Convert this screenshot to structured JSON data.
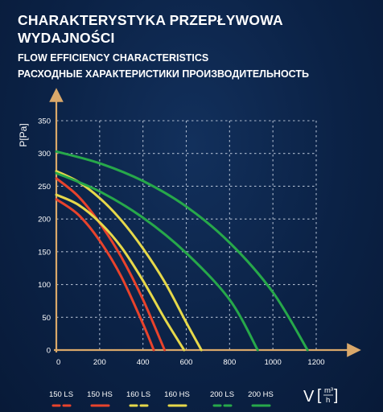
{
  "header": {
    "title_pl": "CHARAKTERYSTYKA PRZEPŁYWOWA WYDAJNOŚCI",
    "title_en": "FLOW EFFICIENCY CHARACTERISTICS",
    "title_ru": "РАСХОДНЫЕ ХАРАКТЕРИСТИКИ ПРОИЗВОДИТЕЛЬНОСТЬ"
  },
  "chart_data": {
    "type": "line",
    "title": "",
    "xlabel": "V",
    "xlabel_unit_num": "m³",
    "xlabel_unit_den": "h",
    "ylabel": "P[Pa]",
    "xlim": [
      0,
      1200
    ],
    "ylim": [
      0,
      350
    ],
    "xticks": [
      0,
      200,
      400,
      600,
      800,
      1000,
      1200
    ],
    "yticks": [
      0,
      50,
      100,
      150,
      200,
      250,
      300,
      350
    ],
    "grid": true,
    "legend_position": "bottom",
    "series": [
      {
        "name": "150 LS",
        "color": "#e8432c",
        "x": [
          0,
          100,
          200,
          300,
          400,
          450
        ],
        "y": [
          230,
          207,
          167,
          112,
          40,
          0
        ]
      },
      {
        "name": "150 HS",
        "color": "#e8432c",
        "x": [
          0,
          100,
          200,
          300,
          400,
          500
        ],
        "y": [
          262,
          235,
          194,
          142,
          77,
          0
        ]
      },
      {
        "name": "160 LS",
        "color": "#e6d84a",
        "x": [
          0,
          100,
          200,
          300,
          400,
          500,
          590
        ],
        "y": [
          237,
          222,
          195,
          157,
          106,
          48,
          0
        ]
      },
      {
        "name": "160 HS",
        "color": "#e6d84a",
        "x": [
          0,
          100,
          200,
          300,
          400,
          500,
          600,
          670
        ],
        "y": [
          273,
          257,
          232,
          198,
          155,
          104,
          42,
          0
        ]
      },
      {
        "name": "200 LS",
        "color": "#27a84a",
        "x": [
          0,
          200,
          400,
          600,
          800,
          930
        ],
        "y": [
          270,
          242,
          202,
          148,
          77,
          0
        ]
      },
      {
        "name": "200 HS",
        "color": "#27a84a",
        "x": [
          0,
          200,
          400,
          600,
          800,
          1000,
          1160
        ],
        "y": [
          303,
          285,
          258,
          219,
          164,
          88,
          0
        ]
      }
    ]
  }
}
